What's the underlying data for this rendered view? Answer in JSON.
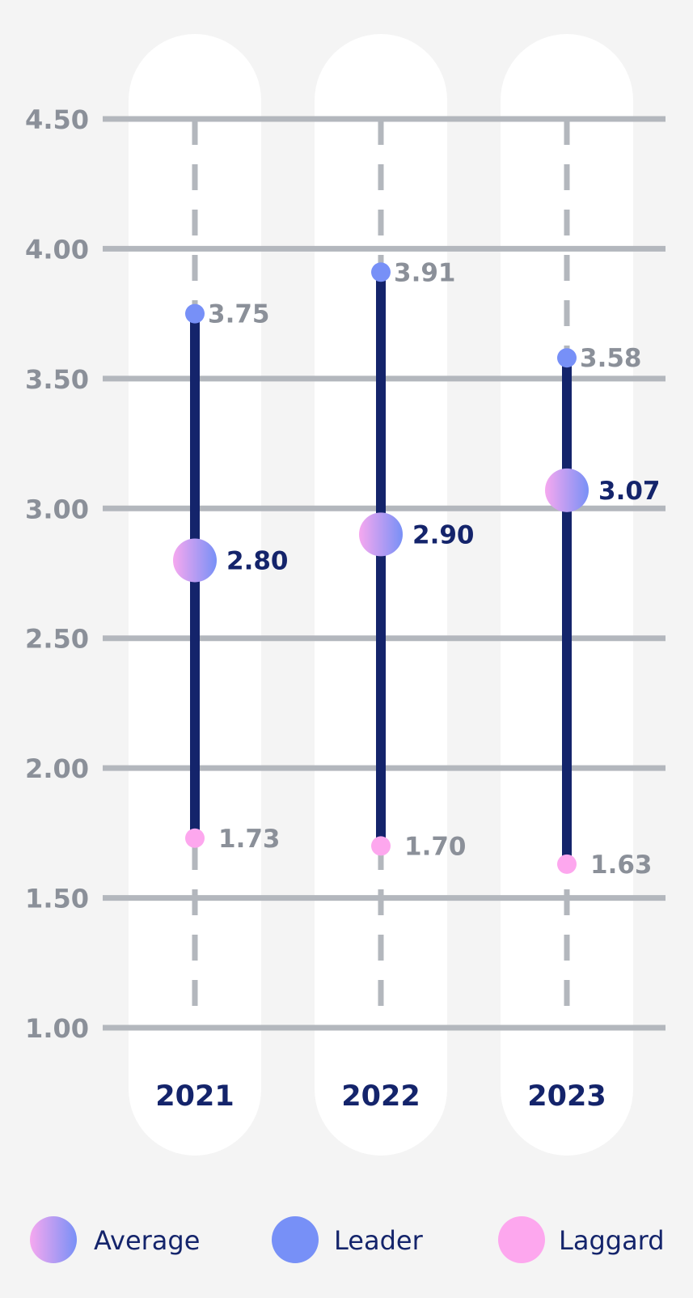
{
  "chart_data": {
    "type": "range-dot",
    "categories": [
      "2021",
      "2022",
      "2023"
    ],
    "series": [
      {
        "name": "Leader",
        "values": [
          3.75,
          3.91,
          3.58
        ],
        "labels": [
          "3.75",
          "3.91",
          "3.58"
        ]
      },
      {
        "name": "Average",
        "values": [
          2.8,
          2.9,
          3.07
        ],
        "labels": [
          "2.80",
          "2.90",
          "3.07"
        ]
      },
      {
        "name": "Laggard",
        "values": [
          1.73,
          1.7,
          1.63
        ],
        "labels": [
          "1.73",
          "1.70",
          "1.63"
        ]
      }
    ],
    "y_ticks": [
      "1.00",
      "1.50",
      "2.00",
      "2.50",
      "3.00",
      "3.50",
      "4.00",
      "4.50"
    ],
    "ylim": [
      1.0,
      4.5
    ],
    "grid": true,
    "legend_position": "bottom",
    "colors": {
      "background": "#f4f4f4",
      "column": "#ffffff",
      "grid": "#b3b7bd",
      "dashed": "#b3b7bd",
      "range_line": "#14246b",
      "leader": "#7790f7",
      "laggard": "#fda7ee",
      "average_from": "#f6a8ef",
      "average_to": "#7890f6",
      "label_secondary": "#8b9099",
      "label_primary": "#14246b"
    }
  }
}
